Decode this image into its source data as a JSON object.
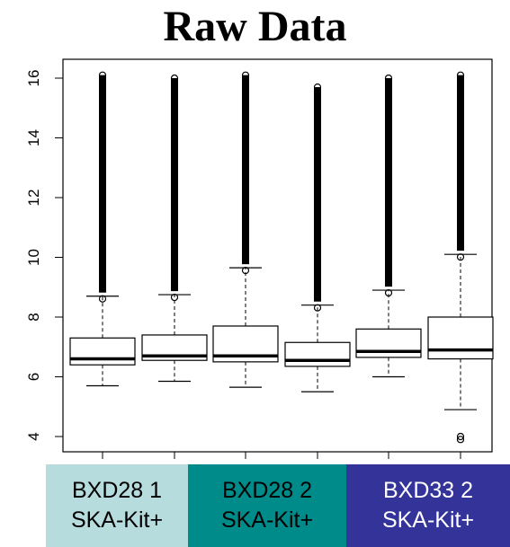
{
  "chart_data": {
    "type": "boxplot",
    "title": "Raw Data",
    "xlabel": "",
    "ylabel": "",
    "ylim": [
      3.6,
      16.5
    ],
    "yticks": [
      4,
      6,
      8,
      10,
      12,
      14,
      16
    ],
    "grid": false,
    "boxes": [
      {
        "min": 5.7,
        "q1": 6.4,
        "median": 6.6,
        "q3": 7.3,
        "whisker_high": 8.7,
        "outliers_low": [],
        "outliers_high_to": 16.1
      },
      {
        "min": 5.85,
        "q1": 6.55,
        "median": 6.7,
        "q3": 7.4,
        "whisker_high": 8.75,
        "outliers_low": [],
        "outliers_high_to": 16.0
      },
      {
        "min": 5.65,
        "q1": 6.5,
        "median": 6.7,
        "q3": 7.7,
        "whisker_high": 9.65,
        "outliers_low": [],
        "outliers_high_to": 16.1
      },
      {
        "min": 5.5,
        "q1": 6.35,
        "median": 6.55,
        "q3": 7.15,
        "whisker_high": 8.4,
        "outliers_low": [],
        "outliers_high_to": 15.7
      },
      {
        "min": 6.0,
        "q1": 6.65,
        "median": 6.85,
        "q3": 7.6,
        "whisker_high": 8.9,
        "outliers_low": [],
        "outliers_high_to": 16.0
      },
      {
        "min": 4.9,
        "q1": 6.6,
        "median": 6.9,
        "q3": 8.0,
        "whisker_high": 10.1,
        "outliers_low": [
          4.0,
          3.9
        ],
        "outliers_high_to": 16.1
      }
    ]
  },
  "groups": [
    {
      "line1": "BXD28 1",
      "line2": "SKA-Kit+",
      "color": "#b6dcde"
    },
    {
      "line1": "BXD28 2",
      "line2": "SKA-Kit+",
      "color": "#008b8b"
    },
    {
      "line1": "BXD33 2",
      "line2": "SKA-Kit+",
      "color": "#333399"
    }
  ]
}
